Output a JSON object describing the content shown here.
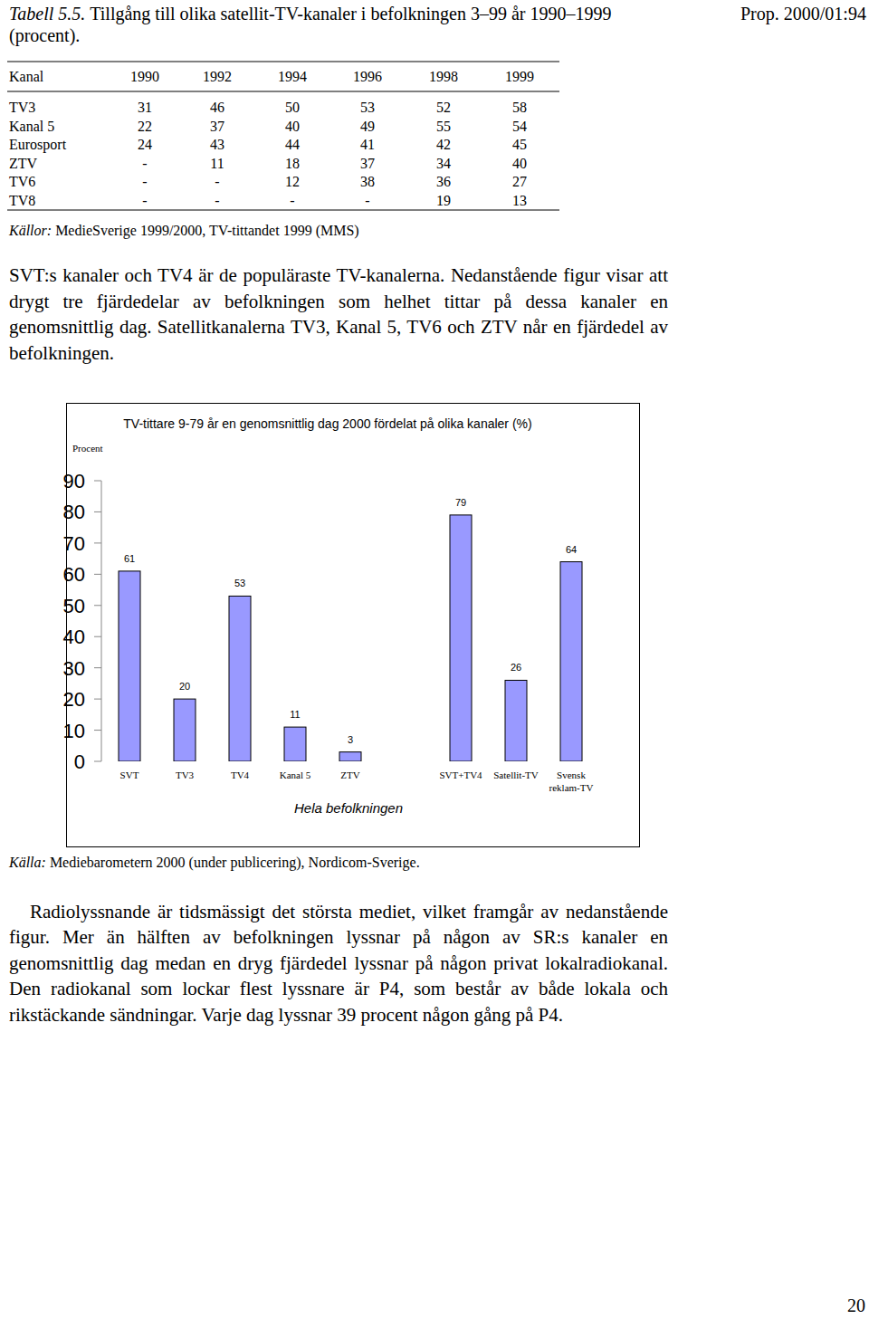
{
  "header": {
    "label": "Tabell 5.5.",
    "title": "Tillgång till olika satellit-TV-kanaler i befolkningen 3–99 år 1990–1999 (procent).",
    "reference": "Prop. 2000/01:94"
  },
  "table": {
    "columns": [
      "Kanal",
      "1990",
      "1992",
      "1994",
      "1996",
      "1998",
      "1999"
    ],
    "rows": [
      [
        "TV3",
        "31",
        "46",
        "50",
        "53",
        "52",
        "58"
      ],
      [
        "Kanal 5",
        "22",
        "37",
        "40",
        "49",
        "55",
        "54"
      ],
      [
        "Eurosport",
        "24",
        "43",
        "44",
        "41",
        "42",
        "45"
      ],
      [
        "ZTV",
        "-",
        "11",
        "18",
        "37",
        "34",
        "40"
      ],
      [
        "TV6",
        "-",
        "-",
        "12",
        "38",
        "36",
        "27"
      ],
      [
        "TV8",
        "-",
        "-",
        "-",
        "-",
        "19",
        "13"
      ]
    ],
    "source": {
      "label": "Källor:",
      "text": "MedieSverige 1999/2000, TV-tittandet 1999 (MMS)"
    }
  },
  "paragraphs": [
    "SVT:s kanaler och TV4 är de populäraste TV-kanalerna. Nedanstående figur visar att drygt tre fjärdedelar av befolkningen som helhet tittar på dessa kanaler en genomsnittlig dag. Satellitkanalerna TV3, Kanal 5, TV6 och ZTV når en fjärdedel av befolkningen.",
    "Radiolyssnande är tidsmässigt det största mediet, vilket framgår av nedanstående figur. Mer än hälften av befolkningen lyssnar på någon av SR:s kanaler en genomsnittlig dag medan en dryg fjärdedel lyssnar på någon privat lokalradiokanal. Den radiokanal som lockar flest lyssnare är P4, som består av både lokala och rikstäckande sändningar. Varje dag lyssnar 39 procent någon gång på P4."
  ],
  "chart_data": {
    "type": "bar",
    "title": "TV-tittare 9-79 år en genomsnittlig dag 2000 fördelat på olika kanaler (%)",
    "ylabel": "Procent",
    "xlabel": "Hela befolkningen",
    "categories": [
      "SVT",
      "TV3",
      "TV4",
      "Kanal 5",
      "ZTV",
      null,
      "SVT+TV4",
      "Satellit-TV",
      "Svensk reklam-TV"
    ],
    "values": [
      61,
      20,
      53,
      11,
      3,
      null,
      79,
      26,
      64
    ],
    "color": "#9999ff",
    "ylim": [
      0,
      90
    ],
    "yticks": [
      0,
      10,
      20,
      30,
      40,
      50,
      60,
      70,
      80,
      90
    ],
    "data_labels": true,
    "grid": false
  },
  "chart_source": {
    "label": "Källa:",
    "text": "Mediebarometern 2000 (under publicering), Nordicom-Sverige."
  },
  "page_number": "20"
}
